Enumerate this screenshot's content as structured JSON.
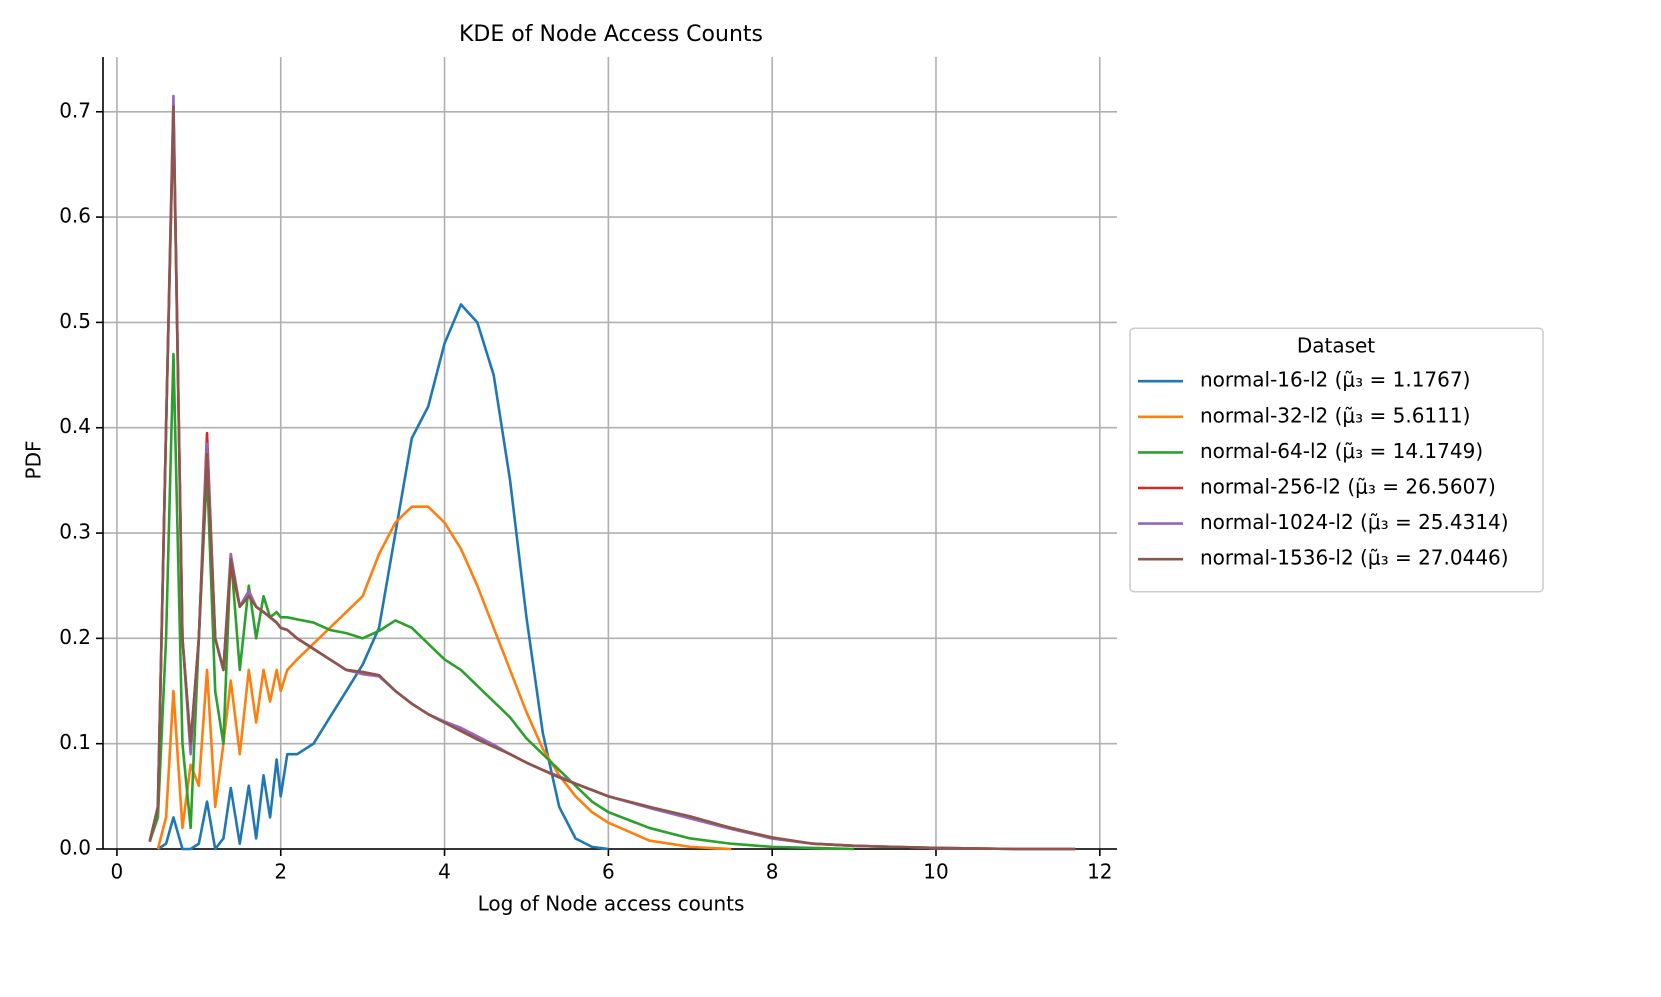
{
  "chart_data": {
    "type": "line",
    "title": "KDE of Node Access Counts",
    "x_label": "Log of Node access counts",
    "y_label": "PDF",
    "grid": true,
    "xlim": [
      -0.17,
      12.21
    ],
    "ylim": [
      0,
      0.752
    ],
    "xticks": [
      0,
      2,
      4,
      6,
      8,
      10,
      12
    ],
    "yticks": [
      {
        "value": 0,
        "label": "0.0"
      },
      0.1,
      0.2,
      0.3,
      0.4,
      0.5,
      0.6,
      0.7
    ],
    "legend": {
      "title": "Dataset",
      "loc": "center left"
    },
    "x": [
      0.4,
      0.5,
      0.6,
      0.69,
      0.8,
      0.9,
      1.0,
      1.1,
      1.2,
      1.3,
      1.39,
      1.5,
      1.61,
      1.7,
      1.79,
      1.87,
      1.95,
      2.0,
      2.08,
      2.2,
      2.4,
      2.6,
      2.8,
      3.0,
      3.2,
      3.4,
      3.6,
      3.8,
      4.0,
      4.2,
      4.4,
      4.6,
      4.8,
      5.0,
      5.2,
      5.4,
      5.6,
      5.8,
      6.0,
      6.5,
      7.0,
      7.5,
      8.0,
      8.5,
      9.0,
      10.0,
      11.0,
      11.7
    ],
    "series": [
      {
        "name": "normal-16-l2 (μ̃₃ = 1.1767)",
        "color": "#1f77b4",
        "values": [
          null,
          0.0,
          0.005,
          0.03,
          0.0,
          0.0,
          0.005,
          0.045,
          0.0,
          0.01,
          0.058,
          0.005,
          0.06,
          0.01,
          0.07,
          0.03,
          0.085,
          0.05,
          0.09,
          0.09,
          0.1,
          0.125,
          0.15,
          0.175,
          0.21,
          0.3,
          0.39,
          0.42,
          0.48,
          0.517,
          0.5,
          0.45,
          0.35,
          0.22,
          0.11,
          0.04,
          0.01,
          0.002,
          0.0,
          null,
          null,
          null,
          null,
          null,
          null,
          null,
          null,
          null
        ]
      },
      {
        "name": "normal-32-l2 (μ̃₃ = 5.6111)",
        "color": "#ff7f0e",
        "values": [
          null,
          0.0,
          0.03,
          0.15,
          0.02,
          0.08,
          0.06,
          0.17,
          0.04,
          0.1,
          0.16,
          0.09,
          0.17,
          0.12,
          0.17,
          0.14,
          0.17,
          0.15,
          0.17,
          0.18,
          0.195,
          0.21,
          0.225,
          0.24,
          0.28,
          0.31,
          0.325,
          0.325,
          0.31,
          0.285,
          0.25,
          0.21,
          0.17,
          0.13,
          0.095,
          0.07,
          0.05,
          0.035,
          0.025,
          0.008,
          0.002,
          0.0,
          null,
          null,
          null,
          null,
          null,
          null
        ]
      },
      {
        "name": "normal-64-l2 (μ̃₃ = 14.1749)",
        "color": "#2ca02c",
        "values": [
          0.007,
          0.03,
          0.2,
          0.47,
          0.1,
          0.02,
          0.2,
          0.36,
          0.15,
          0.1,
          0.28,
          0.17,
          0.25,
          0.2,
          0.24,
          0.22,
          0.225,
          0.22,
          0.22,
          0.218,
          0.215,
          0.208,
          0.205,
          0.2,
          0.207,
          0.217,
          0.21,
          0.195,
          0.18,
          0.17,
          0.155,
          0.14,
          0.125,
          0.105,
          0.09,
          0.075,
          0.06,
          0.045,
          0.035,
          0.02,
          0.01,
          0.005,
          0.002,
          0.001,
          0.0,
          null,
          null,
          null
        ]
      },
      {
        "name": "normal-256-l2 (μ̃₃ = 26.5607)",
        "color": "#d62728",
        "values": [
          0.007,
          0.04,
          0.4,
          0.7,
          0.2,
          0.1,
          0.2,
          0.395,
          0.2,
          0.17,
          0.27,
          0.23,
          0.245,
          0.23,
          0.225,
          0.22,
          0.215,
          0.21,
          0.208,
          0.2,
          0.19,
          0.18,
          0.17,
          0.168,
          0.165,
          0.15,
          0.138,
          0.128,
          0.12,
          0.113,
          0.105,
          0.098,
          0.09,
          0.082,
          0.075,
          0.068,
          0.062,
          0.056,
          0.05,
          0.04,
          0.03,
          0.02,
          0.01,
          0.005,
          0.003,
          0.001,
          0.0,
          0.0
        ]
      },
      {
        "name": "normal-1024-l2 (μ̃₃ = 25.4314)",
        "color": "#9467bd",
        "values": [
          0.007,
          0.04,
          0.4,
          0.715,
          0.2,
          0.09,
          0.2,
          0.385,
          0.2,
          0.17,
          0.28,
          0.23,
          0.245,
          0.23,
          0.225,
          0.22,
          0.215,
          0.21,
          0.208,
          0.2,
          0.19,
          0.18,
          0.17,
          0.166,
          0.164,
          0.15,
          0.138,
          0.128,
          0.121,
          0.115,
          0.107,
          0.099,
          0.09,
          0.082,
          0.075,
          0.069,
          0.062,
          0.056,
          0.05,
          0.039,
          0.029,
          0.019,
          0.01,
          0.005,
          0.003,
          0.001,
          0.0,
          0.0
        ]
      },
      {
        "name": "normal-1536-l2 (μ̃₃ = 27.0446)",
        "color": "#8c564b",
        "values": [
          0.007,
          0.04,
          0.4,
          0.705,
          0.2,
          0.1,
          0.2,
          0.375,
          0.2,
          0.17,
          0.275,
          0.23,
          0.24,
          0.23,
          0.225,
          0.22,
          0.215,
          0.21,
          0.208,
          0.2,
          0.19,
          0.18,
          0.17,
          0.168,
          0.165,
          0.15,
          0.138,
          0.128,
          0.12,
          0.112,
          0.104,
          0.097,
          0.09,
          0.082,
          0.075,
          0.068,
          0.062,
          0.056,
          0.05,
          0.04,
          0.031,
          0.02,
          0.011,
          0.005,
          0.003,
          0.001,
          0.0,
          0.0
        ]
      }
    ]
  }
}
